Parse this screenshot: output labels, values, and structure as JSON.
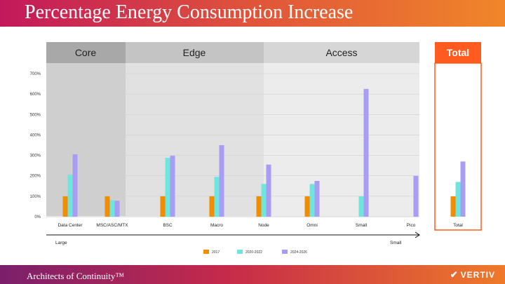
{
  "header": {
    "title": "Percentage Energy Consumption Increase"
  },
  "footer": {
    "tagline": "Architects of Continuity™",
    "brand": "VERTIV"
  },
  "colors": {
    "s2017": "#f28c00",
    "s2020": "#6ee6de",
    "s2024": "#a99cf5",
    "accent": "#ff5a1f"
  },
  "chart_data": {
    "type": "bar",
    "title": "Percentage Energy Consumption Increase",
    "sections": [
      {
        "name": "Core",
        "categories": [
          0
        ]
      },
      {
        "name": "Edge",
        "categories": [
          1,
          2,
          3,
          4
        ]
      },
      {
        "name": "Access",
        "categories": [
          5,
          6,
          7
        ]
      },
      {
        "name": "Total",
        "categories": [
          8
        ]
      }
    ],
    "categories": [
      "Data Center",
      "MSC/ASC/MTX",
      "BSC",
      "Macro",
      "Node",
      "Omni",
      "Small",
      "Pico",
      "Total"
    ],
    "series": [
      {
        "name": "2017",
        "values": [
          100,
          100,
          100,
          100,
          100,
          100,
          null,
          null,
          100
        ]
      },
      {
        "name": "2020-2022",
        "values": [
          205,
          80,
          288,
          195,
          160,
          160,
          100,
          null,
          170
        ]
      },
      {
        "name": "2024-2026",
        "values": [
          305,
          78,
          298,
          350,
          255,
          175,
          625,
          200,
          270
        ]
      }
    ],
    "ylim": [
      0,
      700
    ],
    "yticks": [
      "0%",
      "100%",
      "200%",
      "300%",
      "400%",
      "500%",
      "600%",
      "700%"
    ],
    "ytick_values": [
      0,
      100,
      200,
      300,
      400,
      500,
      600,
      700
    ],
    "axis_left_label": "Large",
    "axis_right_label": "Small",
    "legend": [
      "2017",
      "2020-2022",
      "2024-2026"
    ]
  }
}
